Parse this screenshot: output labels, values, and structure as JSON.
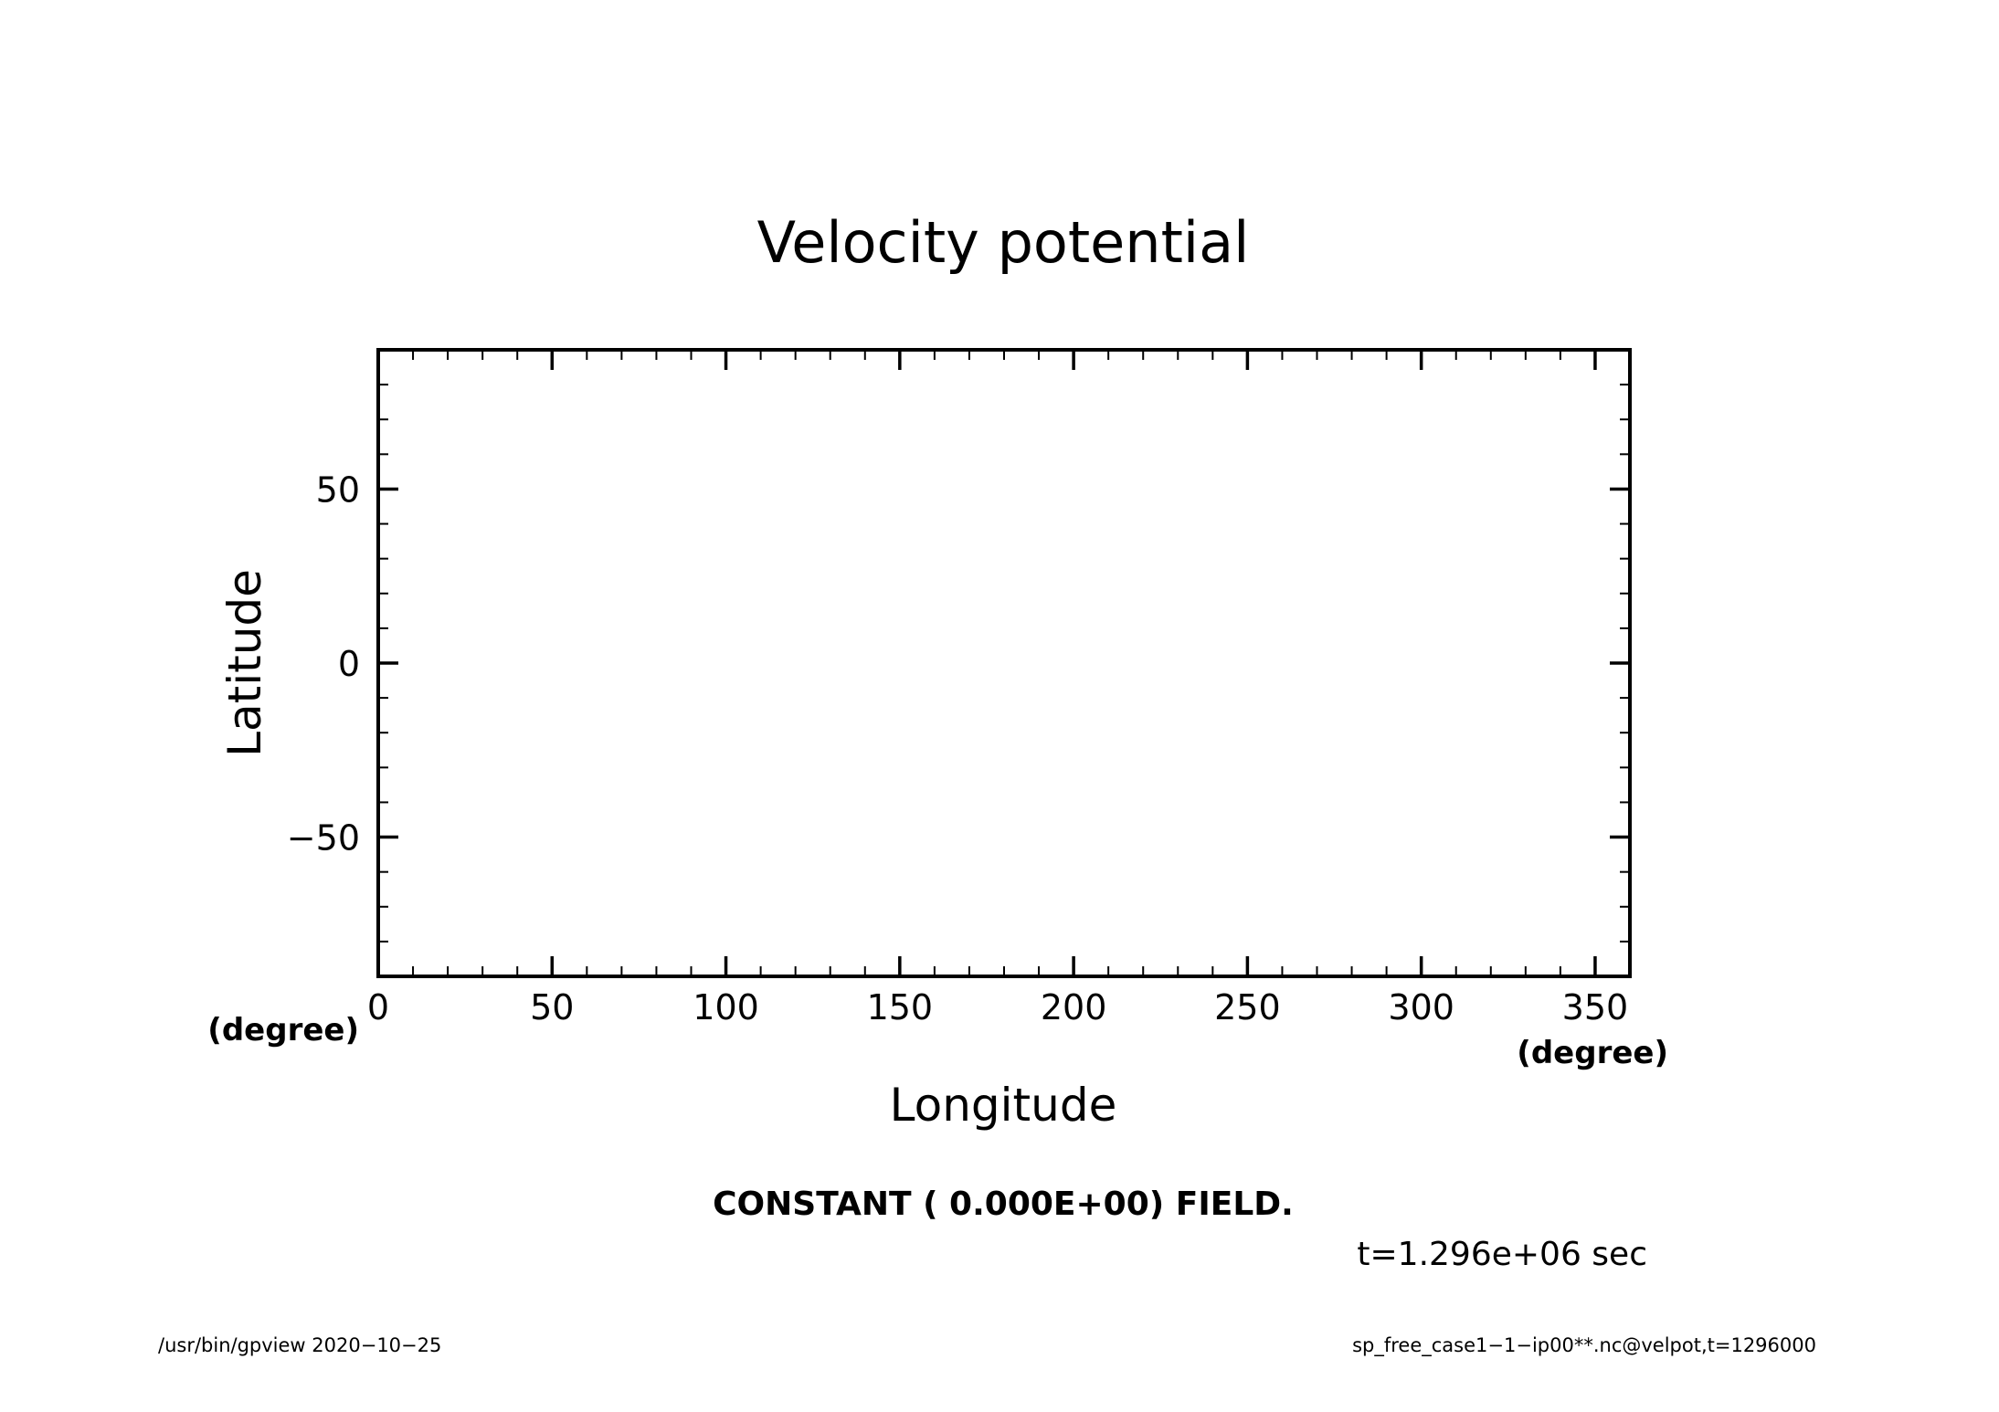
{
  "chart_data": {
    "type": "heatmap",
    "title": "Velocity potential",
    "xlabel": "Longitude",
    "ylabel": "Latitude",
    "x_unit": "(degree)",
    "y_unit": "(degree)",
    "xlim": [
      0,
      360
    ],
    "ylim": [
      -90,
      90
    ],
    "x_major_ticks": [
      0,
      50,
      100,
      150,
      200,
      250,
      300,
      350
    ],
    "x_tick_labels": [
      "0",
      "50",
      "100",
      "150",
      "200",
      "250",
      "300",
      "350"
    ],
    "x_minor_step": 10,
    "y_major_ticks": [
      -50,
      0,
      50
    ],
    "y_tick_labels": [
      "−50",
      "0",
      "50"
    ],
    "y_minor_step": 10,
    "grid": false,
    "field_value": 0,
    "field_note": "CONSTANT ( 0.000E+00) FIELD.",
    "time_label": "t=1.296e+06 sec"
  },
  "footer": {
    "left": "/usr/bin/gpview   2020−10−25",
    "right": "sp_free_case1−1−ip00**.nc@velpot,t=1296000"
  }
}
